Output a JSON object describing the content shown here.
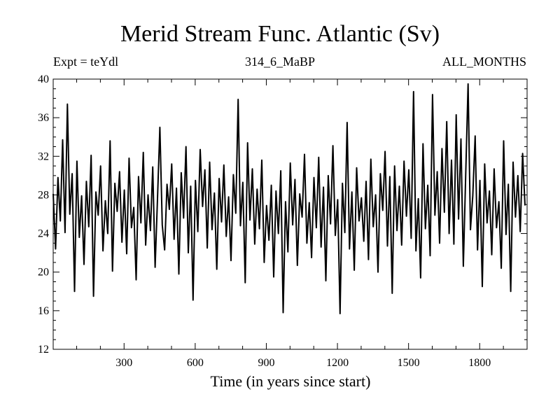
{
  "chart_data": {
    "type": "line",
    "title": "Merid Stream Func. Atlantic (Sv)",
    "experiment_label": "Expt = teYdl",
    "subtitle": "314_6_MaBP",
    "period_label": "ALL_MONTHS",
    "xlabel": "Time (in years since start)",
    "ylabel": "",
    "xlim": [
      1,
      2000
    ],
    "ylim": [
      12,
      40
    ],
    "xticks": [
      300,
      600,
      900,
      1200,
      1500,
      1800
    ],
    "yticks": [
      12,
      16,
      20,
      24,
      28,
      32,
      36,
      40
    ],
    "series": [
      {
        "name": "Merid Stream Func. Atlantic",
        "color": "#000000",
        "sample_step_years": 10,
        "values": [
          28.1,
          22.4,
          29.8,
          25.3,
          33.7,
          24.1,
          37.4,
          26.0,
          30.2,
          18.0,
          31.5,
          23.6,
          27.9,
          20.8,
          29.4,
          24.7,
          32.1,
          17.5,
          28.3,
          25.9,
          31.0,
          22.2,
          27.4,
          24.0,
          33.6,
          20.1,
          29.2,
          26.3,
          30.4,
          23.1,
          28.5,
          21.9,
          31.8,
          24.6,
          26.7,
          19.2,
          29.9,
          25.1,
          32.4,
          22.8,
          28.0,
          24.3,
          30.9,
          20.5,
          27.6,
          35.0,
          24.9,
          22.3,
          29.1,
          26.5,
          31.2,
          23.4,
          28.7,
          19.8,
          30.3,
          25.6,
          33.0,
          22.0,
          28.9,
          17.1,
          29.5,
          24.2,
          32.7,
          26.8,
          30.6,
          22.5,
          31.4,
          24.4,
          28.2,
          20.3,
          29.7,
          25.2,
          31.1,
          23.7,
          27.8,
          21.2,
          30.1,
          26.1,
          37.9,
          24.8,
          29.3,
          18.9,
          33.4,
          25.4,
          30.7,
          22.9,
          28.6,
          24.5,
          31.6,
          21.0,
          26.9,
          23.3,
          29.0,
          19.5,
          28.4,
          24.0,
          30.5,
          15.8,
          27.3,
          22.1,
          31.3,
          24.9,
          29.6,
          20.7,
          28.1,
          25.7,
          32.2,
          23.0,
          27.2,
          21.5,
          29.8,
          24.6,
          31.9,
          22.6,
          28.8,
          19.1,
          30.0,
          25.0,
          33.1,
          23.8,
          27.5,
          15.7,
          29.2,
          24.1,
          35.5,
          22.4,
          28.3,
          20.2,
          30.8,
          25.3,
          27.7,
          23.2,
          29.4,
          21.3,
          31.7,
          24.7,
          28.0,
          20.0,
          30.2,
          26.4,
          32.5,
          22.7,
          29.9,
          17.8,
          31.0,
          24.3,
          28.9,
          22.8,
          31.5,
          25.8,
          30.6,
          23.5,
          38.7,
          22.2,
          27.6,
          19.4,
          33.3,
          24.5,
          29.0,
          21.7,
          38.4,
          25.9,
          30.4,
          23.0,
          32.8,
          26.2,
          35.6,
          24.0,
          31.6,
          22.9,
          36.3,
          25.5,
          33.8,
          20.6,
          30.1,
          39.5,
          24.4,
          27.9,
          34.1,
          22.3,
          29.5,
          18.5,
          31.2,
          25.1,
          28.4,
          21.8,
          30.7,
          24.6,
          27.3,
          20.4,
          33.6,
          23.9,
          29.1,
          18.0,
          31.4,
          25.7,
          30.0,
          24.2,
          32.3,
          26.9,
          28.8,
          23.6
        ]
      }
    ]
  }
}
